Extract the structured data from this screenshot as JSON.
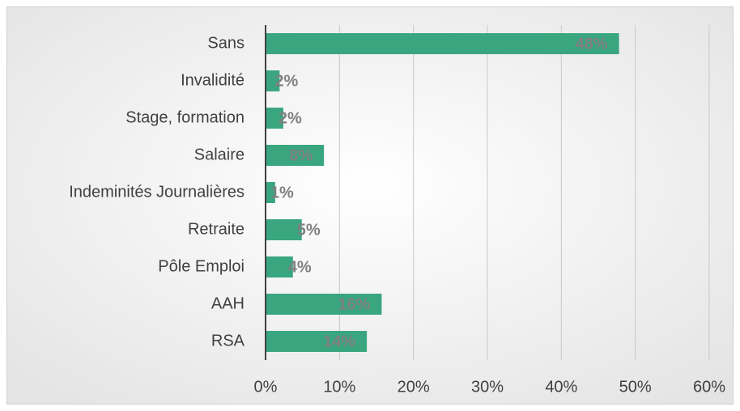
{
  "chart_data": {
    "type": "bar",
    "orientation": "horizontal",
    "categories": [
      "Sans",
      "Invalidité",
      "Stage, formation",
      "Salaire",
      "Indeminités Journalières",
      "Retraite",
      "Pôle Emploi",
      "AAH",
      "RSA"
    ],
    "values": [
      47.8,
      1.9,
      2.4,
      7.9,
      1.3,
      4.9,
      3.7,
      15.7,
      13.7
    ],
    "value_labels": [
      "48%",
      "2%",
      "2%",
      "8%",
      "1%",
      "5%",
      "4%",
      "16%",
      "14%"
    ],
    "color": "#3aa680",
    "xlim": [
      0,
      60
    ],
    "xticks": [
      {
        "value": 0,
        "label": "0%"
      },
      {
        "value": 10,
        "label": "10%"
      },
      {
        "value": 20,
        "label": "20%"
      },
      {
        "value": 30,
        "label": "30%"
      },
      {
        "value": 40,
        "label": "40%"
      },
      {
        "value": 50,
        "label": "50%"
      },
      {
        "value": 60,
        "label": "60%"
      }
    ],
    "grid": true
  }
}
